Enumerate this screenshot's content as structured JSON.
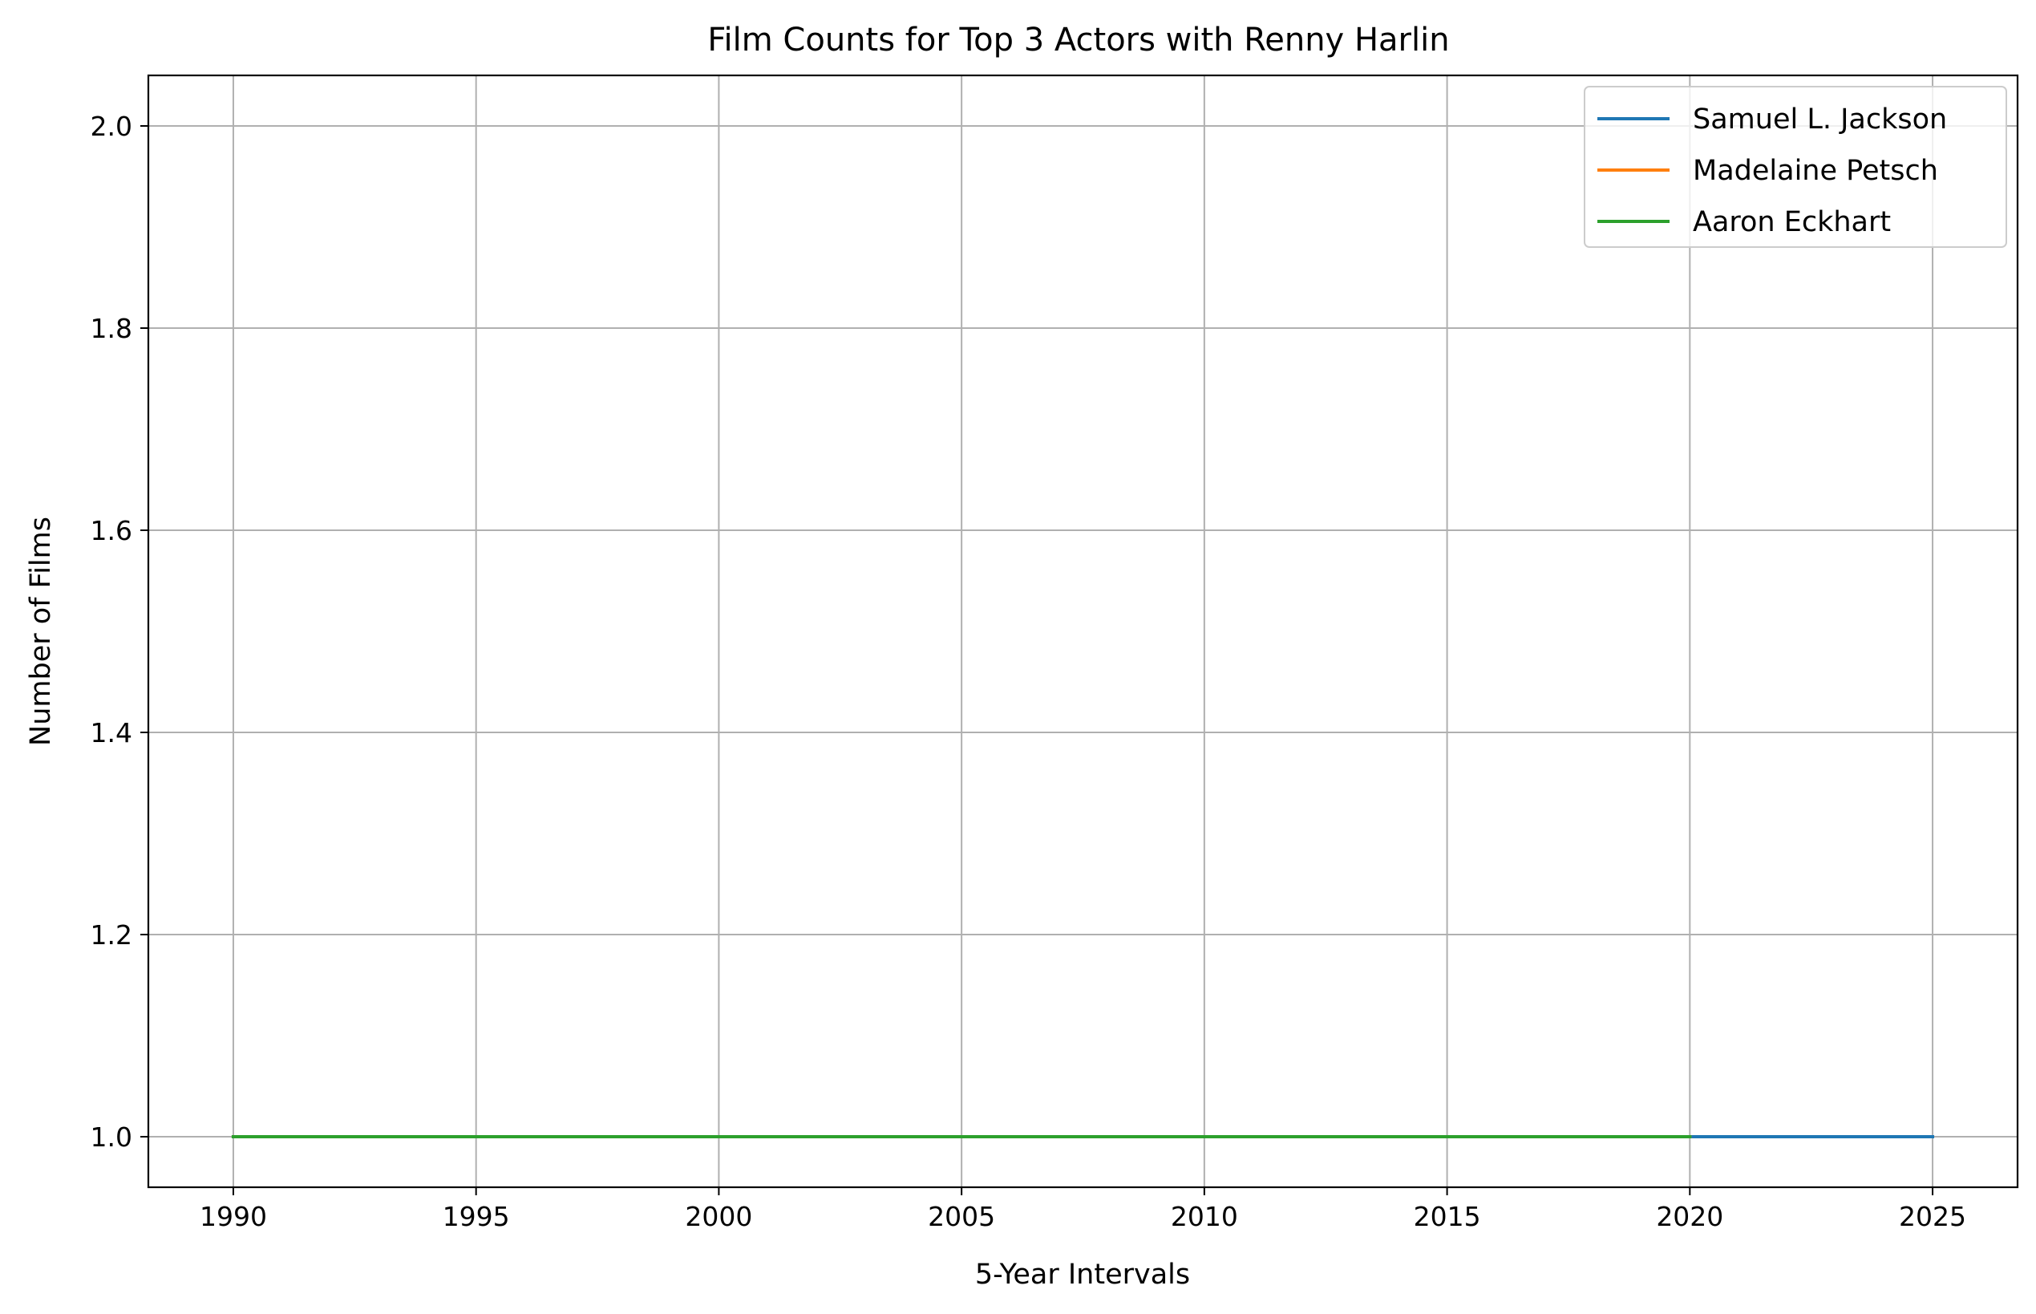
{
  "chart_data": {
    "type": "line",
    "title": "Film Counts for Top 3 Actors with Renny Harlin",
    "xlabel": "5-Year Intervals",
    "ylabel": "Number of Films",
    "xlim": [
      1988.25,
      2026.75
    ],
    "ylim": [
      0.95,
      2.05
    ],
    "x_ticks": [
      1990,
      1995,
      2000,
      2005,
      2010,
      2015,
      2020,
      2025
    ],
    "y_ticks": [
      1.0,
      1.2,
      1.4,
      1.6,
      1.8,
      2.0
    ],
    "x_tick_labels": [
      "1990",
      "1995",
      "2000",
      "2005",
      "2010",
      "2015",
      "2020",
      "2025"
    ],
    "y_tick_labels": [
      "1.0",
      "1.2",
      "1.4",
      "1.6",
      "1.8",
      "2.0"
    ],
    "grid": true,
    "legend_position": "top-right",
    "series": [
      {
        "name": "Samuel L. Jackson",
        "color": "#1f77b4",
        "x": [
          1990,
          1995,
          2000,
          2005,
          2010,
          2015,
          2020,
          2025
        ],
        "y": [
          1,
          1,
          1,
          1,
          1,
          1,
          1,
          1
        ]
      },
      {
        "name": "Madelaine Petsch",
        "color": "#ff7f0e",
        "x": [
          1990,
          1995,
          2000,
          2005,
          2010,
          2015,
          2020
        ],
        "y": [
          1,
          1,
          1,
          1,
          1,
          1,
          1
        ]
      },
      {
        "name": "Aaron Eckhart",
        "color": "#2ca02c",
        "x": [
          1990,
          1995,
          2000,
          2005,
          2010,
          2015,
          2020
        ],
        "y": [
          1,
          1,
          1,
          1,
          1,
          1,
          1
        ]
      }
    ]
  }
}
